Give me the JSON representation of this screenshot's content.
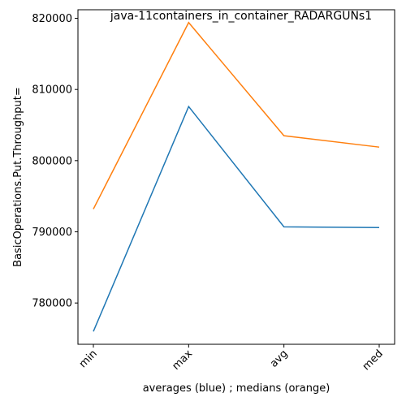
{
  "chart_data": {
    "type": "line",
    "title": "java-11containers_in_container_RADARGUNs1",
    "xlabel": "averages (blue) ; medians (orange)",
    "ylabel": "BasicOperations.Put.Throughput=",
    "categories": [
      "min",
      "max",
      "avg",
      "med"
    ],
    "series": [
      {
        "values": [
          776000,
          807600,
          790700,
          790600
        ],
        "color": "#1f77b4"
      },
      {
        "values": [
          793200,
          819400,
          803500,
          801900
        ],
        "color": "#ff7f0e"
      }
    ],
    "ylim": [
      774200,
      821200
    ],
    "yticks": [
      780000,
      790000,
      800000,
      810000,
      820000
    ],
    "ytick_labels": [
      "780000",
      "790000",
      "800000",
      "810000",
      "820000"
    ],
    "grid": false,
    "legend": "none"
  }
}
